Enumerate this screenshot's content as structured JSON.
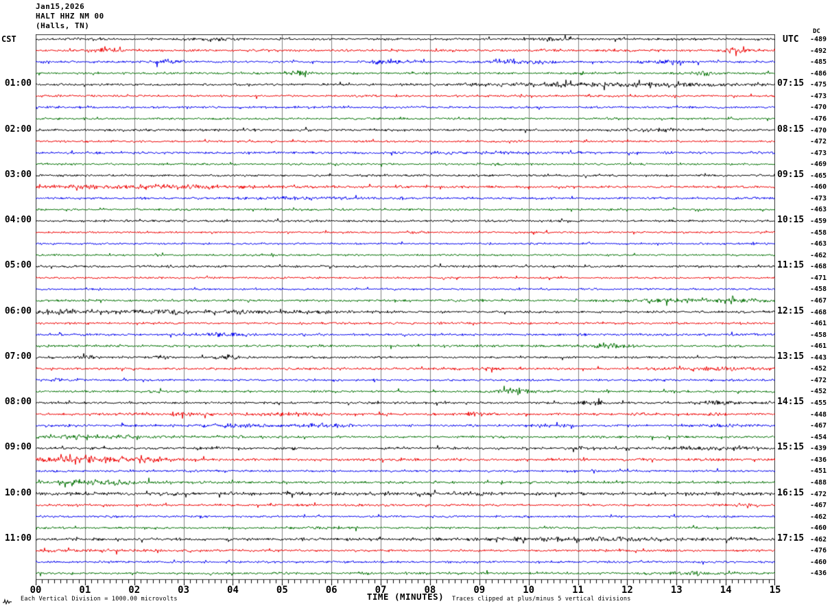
{
  "header": {
    "date": "Jan15,2026",
    "station": "HALT HHZ NM 00",
    "location": "(Halls, TN)"
  },
  "left_axis": {
    "label": "CST"
  },
  "right_axis": {
    "label": "UTC",
    "dc_label": "DC"
  },
  "x_axis": {
    "title": "TIME (MINUTES)"
  },
  "footer": {
    "left": "Each Vertical Division = 1000.00 microvolts",
    "right": "Traces clipped at plus/minus 5 vertical divisions"
  },
  "colors": {
    "palette": {
      "black": "#000000",
      "red": "#ee0000",
      "blue": "#0000ee",
      "green": "#007000"
    },
    "grid": "#7f7f7f",
    "border": "#303030",
    "axis": "#000000"
  },
  "chart_data": {
    "type": "line",
    "subtype": "helicorder-seismogram",
    "title": "HALT HHZ NM 00 (Halls, TN) Jan15,2026",
    "xlabel": "TIME (MINUTES)",
    "x_range": [
      0,
      15
    ],
    "x_ticks": [
      "00",
      "01",
      "02",
      "03",
      "04",
      "05",
      "06",
      "07",
      "08",
      "09",
      "10",
      "11",
      "12",
      "13",
      "14",
      "15"
    ],
    "minor_ticks_per_minute": 7,
    "minutes_per_row": 15,
    "clip_divisions": 5,
    "microvolts_per_division": 1000.0,
    "rows": [
      {
        "color": "black",
        "dc": -489,
        "ev": [
          {
            "t": 3.5,
            "a": 1.0,
            "w": 0.25
          },
          {
            "t": 10.5,
            "a": 1.0,
            "w": 0.3
          }
        ]
      },
      {
        "color": "red",
        "dc": -492,
        "ev": [
          {
            "t": 1.5,
            "a": 1.5,
            "w": 0.25
          },
          {
            "t": 14.2,
            "a": 2.0,
            "w": 0.15
          }
        ]
      },
      {
        "color": "blue",
        "dc": -485,
        "ev": [
          {
            "t": 2.7,
            "a": 1.5,
            "w": 0.2
          },
          {
            "t": 7.0,
            "a": 1.2,
            "w": 0.3
          },
          {
            "t": 9.9,
            "a": 1.6,
            "w": 0.4
          },
          {
            "t": 12.7,
            "a": 1.2,
            "w": 0.3
          }
        ]
      },
      {
        "color": "green",
        "dc": -486,
        "ev": [
          {
            "t": 5.3,
            "a": 2.2,
            "w": 0.15
          },
          {
            "t": 13.5,
            "a": 1.6,
            "w": 0.15
          }
        ]
      },
      {
        "color": "black",
        "dc": -475,
        "cst": "01:00",
        "utc": "07:15",
        "ev": [
          {
            "t": 11.3,
            "a": 1.1,
            "w": 1.8
          },
          {
            "t": 13.0,
            "a": 0.8,
            "w": 0.4
          }
        ]
      },
      {
        "color": "red",
        "dc": -473,
        "amp": 0.9
      },
      {
        "color": "blue",
        "dc": -470,
        "amp": 0.9
      },
      {
        "color": "green",
        "dc": -476,
        "amp": 0.9
      },
      {
        "color": "black",
        "dc": -470,
        "cst": "02:00",
        "utc": "08:15",
        "ev": [
          {
            "t": 12.4,
            "a": 0.7,
            "w": 0.5
          }
        ]
      },
      {
        "color": "red",
        "dc": -472,
        "amp": 0.9
      },
      {
        "color": "blue",
        "dc": -473,
        "ev": [
          {
            "t": 9.0,
            "a": 0.5,
            "w": 1.0
          }
        ]
      },
      {
        "color": "green",
        "dc": -469,
        "amp": 0.9
      },
      {
        "color": "black",
        "dc": -465,
        "cst": "03:00",
        "utc": "09:15"
      },
      {
        "color": "red",
        "dc": -460,
        "ev": [
          {
            "t": 2.5,
            "a": 1.1,
            "w": 1.8
          }
        ]
      },
      {
        "color": "blue",
        "dc": -473,
        "ev": [
          {
            "t": 5.5,
            "a": 0.7,
            "w": 0.8
          }
        ]
      },
      {
        "color": "green",
        "dc": -463,
        "amp": 0.9
      },
      {
        "color": "black",
        "dc": -459,
        "cst": "04:00",
        "utc": "10:15"
      },
      {
        "color": "red",
        "dc": -458,
        "amp": 0.85
      },
      {
        "color": "blue",
        "dc": -463,
        "amp": 0.85
      },
      {
        "color": "green",
        "dc": -462,
        "amp": 0.85
      },
      {
        "color": "black",
        "dc": -468,
        "cst": "05:00",
        "utc": "11:15"
      },
      {
        "color": "red",
        "dc": -471,
        "amp": 0.85
      },
      {
        "color": "blue",
        "dc": -458,
        "amp": 0.85
      },
      {
        "color": "green",
        "dc": -467,
        "ev": [
          {
            "t": 13.8,
            "a": 1.4,
            "w": 1.0
          }
        ]
      },
      {
        "color": "black",
        "dc": -468,
        "cst": "06:00",
        "utc": "12:15",
        "ev": [
          {
            "t": 0.5,
            "a": 1.4,
            "w": 0.4
          },
          {
            "t": 3.0,
            "a": 0.9,
            "w": 2.2
          }
        ]
      },
      {
        "color": "red",
        "dc": -461,
        "amp": 0.95
      },
      {
        "color": "blue",
        "dc": -458,
        "ev": [
          {
            "t": 3.9,
            "a": 1.5,
            "w": 0.3
          }
        ]
      },
      {
        "color": "green",
        "dc": -461,
        "ev": [
          {
            "t": 11.7,
            "a": 2.6,
            "w": 0.2
          }
        ]
      },
      {
        "color": "black",
        "dc": -443,
        "cst": "07:00",
        "utc": "13:15",
        "ev": [
          {
            "t": 1.0,
            "a": 1.0,
            "w": 0.15
          },
          {
            "t": 2.6,
            "a": 1.0,
            "w": 0.15
          },
          {
            "t": 3.9,
            "a": 1.2,
            "w": 0.15
          }
        ]
      },
      {
        "color": "red",
        "dc": -452,
        "ev": [
          {
            "t": 9.3,
            "a": 0.7,
            "w": 0.3
          },
          {
            "t": 13.8,
            "a": 1.1,
            "w": 0.8
          }
        ]
      },
      {
        "color": "blue",
        "dc": -472,
        "amp": 0.95,
        "ev": [
          {
            "t": 0.5,
            "a": 0.7,
            "w": 0.3
          }
        ]
      },
      {
        "color": "green",
        "dc": -452,
        "ev": [
          {
            "t": 9.7,
            "a": 2.0,
            "w": 0.25
          }
        ]
      },
      {
        "color": "black",
        "dc": -455,
        "cst": "08:00",
        "utc": "14:15",
        "ev": [
          {
            "t": 11.3,
            "a": 1.4,
            "w": 0.2
          },
          {
            "t": 13.9,
            "a": 1.4,
            "w": 0.25
          }
        ]
      },
      {
        "color": "red",
        "dc": -448,
        "ev": [
          {
            "t": 3.0,
            "a": 0.9,
            "w": 0.8
          },
          {
            "t": 5.2,
            "a": 0.9,
            "w": 0.5
          },
          {
            "t": 8.9,
            "a": 1.4,
            "w": 0.2
          },
          {
            "t": 12.2,
            "a": 0.9,
            "w": 0.15
          },
          {
            "t": 13.7,
            "a": 0.9,
            "w": 0.2
          }
        ]
      },
      {
        "color": "blue",
        "dc": -467,
        "ev": [
          {
            "t": 4.0,
            "a": 0.9,
            "w": 0.5
          },
          {
            "t": 5.8,
            "a": 1.1,
            "w": 0.4
          },
          {
            "t": 10.4,
            "a": 0.7,
            "w": 0.3
          },
          {
            "t": 13.9,
            "a": 0.9,
            "w": 0.4
          }
        ]
      },
      {
        "color": "green",
        "dc": -454,
        "ev": [
          {
            "t": 1.2,
            "a": 1.1,
            "w": 1.0
          }
        ]
      },
      {
        "color": "black",
        "dc": -439,
        "cst": "09:00",
        "utc": "15:15",
        "ev": [
          {
            "t": 11.0,
            "a": 0.7,
            "w": 0.3
          },
          {
            "t": 13.9,
            "a": 1.2,
            "w": 0.6
          }
        ]
      },
      {
        "color": "red",
        "dc": -436,
        "amp": 1.1,
        "ev": [
          {
            "t": 1.0,
            "a": 1.7,
            "w": 1.1
          },
          {
            "t": 2.3,
            "a": 1.4,
            "w": 0.2
          }
        ]
      },
      {
        "color": "blue",
        "dc": -451,
        "amp": 0.95
      },
      {
        "color": "green",
        "dc": -488,
        "ev": [
          {
            "t": 1.2,
            "a": 1.4,
            "w": 1.0
          }
        ]
      },
      {
        "color": "black",
        "dc": -472,
        "cst": "10:00",
        "utc": "16:15",
        "amp": 1.5
      },
      {
        "color": "red",
        "dc": -467,
        "amp": 0.95,
        "ev": [
          {
            "t": 14.5,
            "a": 0.9,
            "w": 0.2
          }
        ]
      },
      {
        "color": "blue",
        "dc": -462,
        "amp": 0.9
      },
      {
        "color": "green",
        "dc": -460,
        "amp": 0.9,
        "ev": [
          {
            "t": 6.0,
            "a": 0.5,
            "w": 0.5
          }
        ]
      },
      {
        "color": "black",
        "dc": -462,
        "cst": "11:00",
        "utc": "17:15",
        "amp": 1.2,
        "ev": [
          {
            "t": 11.5,
            "a": 0.7,
            "w": 2.3
          }
        ]
      },
      {
        "color": "red",
        "dc": -476,
        "ev": [
          {
            "t": 1.5,
            "a": 0.5,
            "w": 0.8
          }
        ]
      },
      {
        "color": "blue",
        "dc": -460,
        "amp": 0.9
      },
      {
        "color": "green",
        "dc": -436,
        "ev": [
          {
            "t": 13.2,
            "a": 1.2,
            "w": 0.2
          }
        ]
      }
    ],
    "notes": [
      "Each Vertical Division = 1000.00 microvolts",
      "Traces clipped at plus/minus 5 vertical divisions"
    ],
    "legend_position": "none",
    "grid": "vertical-minute-lines"
  }
}
